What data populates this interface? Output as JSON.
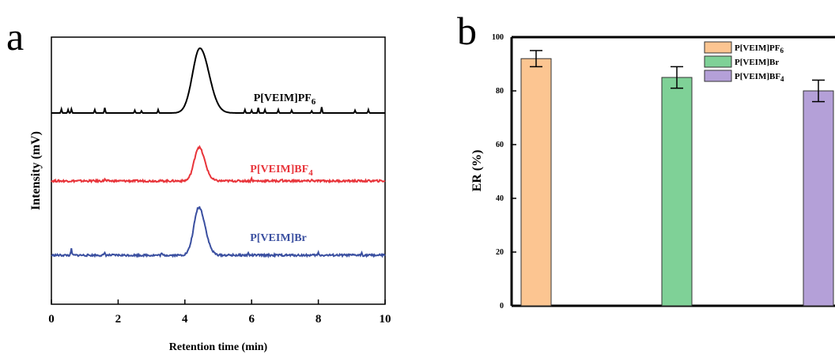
{
  "panels": {
    "a": "a",
    "b": "b"
  },
  "chart_data": [
    {
      "type": "line",
      "panel": "a",
      "xlabel": "Retention time (min)",
      "ylabel": "Intensity (mV)",
      "xlim": [
        0,
        10
      ],
      "xticks": [
        0,
        2,
        4,
        6,
        8,
        10
      ],
      "yticks_shown": false,
      "series": [
        {
          "name": "P[VEIM]PF",
          "sub": "6",
          "color": "#000000",
          "baseline": 0.0,
          "peak_x": 4.45,
          "peak_height": 1.0,
          "peak_width": 0.22,
          "spikes": [
            [
              0.3,
              0.06
            ],
            [
              0.5,
              0.05
            ],
            [
              0.6,
              0.06
            ],
            [
              1.3,
              0.05
            ],
            [
              1.6,
              0.08
            ],
            [
              2.5,
              0.04
            ],
            [
              2.7,
              0.03
            ],
            [
              3.2,
              0.05
            ],
            [
              5.8,
              0.05
            ],
            [
              6.0,
              0.04
            ],
            [
              6.2,
              0.08
            ],
            [
              6.4,
              0.05
            ],
            [
              6.8,
              0.05
            ],
            [
              7.2,
              0.04
            ],
            [
              7.8,
              0.03
            ],
            [
              8.1,
              0.09
            ],
            [
              9.1,
              0.04
            ],
            [
              9.5,
              0.05
            ]
          ]
        },
        {
          "name": "P[VEIM]BF",
          "sub": "4",
          "color": "#e8343a",
          "baseline": 0.0,
          "peak_x": 4.42,
          "peak_height": 0.52,
          "peak_width": 0.14,
          "spikes": [
            [
              1.6,
              0.03
            ],
            [
              6.0,
              0.04
            ],
            [
              6.9,
              0.03
            ],
            [
              7.8,
              0.02
            ]
          ]
        },
        {
          "name": "P[VEIM]Br",
          "sub": "",
          "color": "#3a4fa0",
          "baseline": 0.0,
          "peak_x": 4.42,
          "peak_height": 0.74,
          "peak_width": 0.15,
          "spikes": [
            [
              0.6,
              0.1
            ],
            [
              1.6,
              0.04
            ],
            [
              3.3,
              0.03
            ],
            [
              5.9,
              0.03
            ],
            [
              8.0,
              0.04
            ],
            [
              9.3,
              0.04
            ]
          ]
        }
      ]
    },
    {
      "type": "bar",
      "panel": "b",
      "ylabel": "ER (%)",
      "xlabel": "",
      "ylim": [
        0,
        100
      ],
      "yticks": [
        0,
        20,
        40,
        60,
        80,
        100
      ],
      "categories": [
        "P[VEIM]PF6",
        "P[VEIM]Br",
        "P[VEIM]BF4"
      ],
      "series": [
        {
          "name": "P[VEIM]PF",
          "sub": "6",
          "value": 92,
          "error": 3,
          "color": "#fcc591"
        },
        {
          "name": "P[VEIM]Br",
          "sub": "",
          "value": 85,
          "error": 4,
          "color": "#7fd197"
        },
        {
          "name": "P[VEIM]BF",
          "sub": "4",
          "value": 80,
          "error": 4,
          "color": "#b4a0d8"
        }
      ],
      "legend": "top-right"
    }
  ]
}
